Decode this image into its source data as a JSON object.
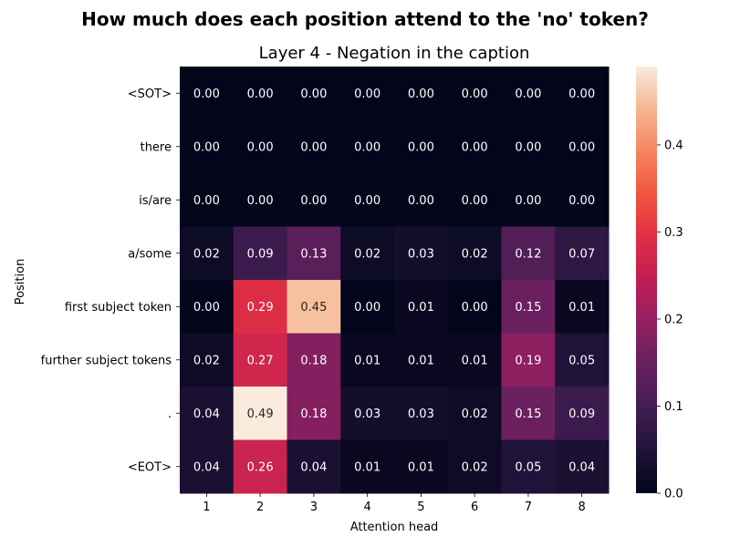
{
  "chart_data": {
    "type": "heatmap",
    "suptitle": "How much does each position attend to the 'no' token?",
    "title": "Layer 4 - Negation in the caption",
    "xlabel": "Attention head",
    "ylabel": "Position",
    "x": [
      "1",
      "2",
      "3",
      "4",
      "5",
      "6",
      "7",
      "8"
    ],
    "y": [
      "<SOT>",
      "there",
      "is/are",
      "a/some",
      "first subject token",
      "further subject tokens",
      ".",
      "<EOT>"
    ],
    "values": [
      [
        0.0,
        0.0,
        0.0,
        0.0,
        0.0,
        0.0,
        0.0,
        0.0
      ],
      [
        0.0,
        0.0,
        0.0,
        0.0,
        0.0,
        0.0,
        0.0,
        0.0
      ],
      [
        0.0,
        0.0,
        0.0,
        0.0,
        0.0,
        0.0,
        0.0,
        0.0
      ],
      [
        0.02,
        0.09,
        0.13,
        0.02,
        0.03,
        0.02,
        0.12,
        0.07
      ],
      [
        0.0,
        0.29,
        0.45,
        0.0,
        0.01,
        0.0,
        0.15,
        0.01
      ],
      [
        0.02,
        0.27,
        0.18,
        0.01,
        0.01,
        0.01,
        0.19,
        0.05
      ],
      [
        0.04,
        0.49,
        0.18,
        0.03,
        0.03,
        0.02,
        0.15,
        0.09
      ],
      [
        0.04,
        0.26,
        0.04,
        0.01,
        0.01,
        0.02,
        0.05,
        0.04
      ]
    ],
    "colorbar": {
      "min": 0.0,
      "max": 0.49,
      "ticks": [
        "0.0",
        "0.1",
        "0.2",
        "0.3",
        "0.4"
      ],
      "colormap": "rocket",
      "low_color": "#03051a",
      "high_color": "#faebdd"
    },
    "value_format": "2 decimals",
    "grid": false
  }
}
